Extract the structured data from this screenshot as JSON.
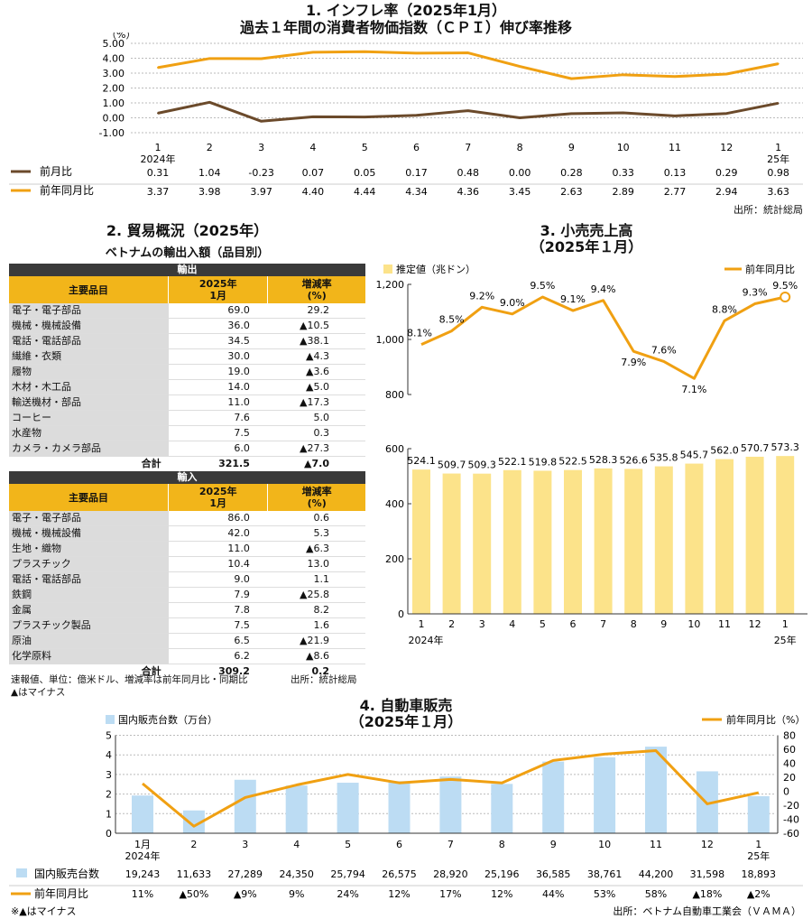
{
  "cpi": {
    "title1": "1. インフレ率（2025年1月）",
    "title2": "過去１年間の消費者物価指数（ＣＰＩ）伸び率推移",
    "unit": "（%）",
    "source": "出所：統計総局",
    "chart_data": {
      "type": "line",
      "categories": [
        "1",
        "2",
        "3",
        "4",
        "5",
        "6",
        "7",
        "8",
        "9",
        "10",
        "11",
        "12",
        "1"
      ],
      "year_labels": {
        "first": "2024年",
        "last": "25年"
      },
      "ylim": [
        -1.0,
        5.0
      ],
      "yticks": [
        "5.00",
        "4.00",
        "3.00",
        "2.00",
        "1.00",
        "0.00",
        "-1.00"
      ],
      "series": [
        {
          "name": "前月比",
          "color": "#6b4a2b",
          "values": [
            0.31,
            1.04,
            -0.23,
            0.07,
            0.05,
            0.17,
            0.48,
            0.0,
            0.28,
            0.33,
            0.13,
            0.29,
            0.98
          ],
          "labels": [
            "0.31",
            "1.04",
            "-0.23",
            "0.07",
            "0.05",
            "0.17",
            "0.48",
            "0.00",
            "0.28",
            "0.33",
            "0.13",
            "0.29",
            "0.98"
          ]
        },
        {
          "name": "前年同月比",
          "color": "#f0a012",
          "values": [
            3.37,
            3.98,
            3.97,
            4.4,
            4.44,
            4.34,
            4.36,
            3.45,
            2.63,
            2.89,
            2.77,
            2.94,
            3.63
          ],
          "labels": [
            "3.37",
            "3.98",
            "3.97",
            "4.40",
            "4.44",
            "4.34",
            "4.36",
            "3.45",
            "2.63",
            "2.89",
            "2.77",
            "2.94",
            "3.63"
          ]
        }
      ]
    }
  },
  "trade": {
    "title": "2. 貿易概況（2025年）",
    "subtitle": "ベトナムの輸出入額（品目別）",
    "col_item": "主要品目",
    "col_value": "2025年\n1月",
    "col_rate": "増減率\n(%)",
    "total_label": "合計",
    "note1": "速報値、単位：億米ドル、増減率は前年同月比・同期比",
    "note2": "▲はマイナス",
    "source": "出所：統計総局",
    "export": {
      "label": "輸出",
      "rows": [
        [
          "電子・電子部品",
          "69.0",
          "29.2"
        ],
        [
          "機械・機械設備",
          "36.0",
          "▲10.5"
        ],
        [
          "電話・電話部品",
          "34.5",
          "▲38.1"
        ],
        [
          "繊維・衣類",
          "30.0",
          "▲4.3"
        ],
        [
          "履物",
          "19.0",
          "▲3.6"
        ],
        [
          "木材・木工品",
          "14.0",
          "▲5.0"
        ],
        [
          "輸送機材・部品",
          "11.0",
          "▲17.3"
        ],
        [
          "コーヒー",
          "7.6",
          "5.0"
        ],
        [
          "水産物",
          "7.5",
          "0.3"
        ],
        [
          "カメラ・カメラ部品",
          "6.0",
          "▲27.3"
        ]
      ],
      "total": [
        "321.5",
        "▲7.0"
      ]
    },
    "import": {
      "label": "輸入",
      "rows": [
        [
          "電子・電子部品",
          "86.0",
          "0.6"
        ],
        [
          "機械・機械設備",
          "42.0",
          "5.3"
        ],
        [
          "生地・織物",
          "11.0",
          "▲6.3"
        ],
        [
          "プラスチック",
          "10.4",
          "13.0"
        ],
        [
          "電話・電話部品",
          "9.0",
          "1.1"
        ],
        [
          "鉄鋼",
          "7.9",
          "▲25.8"
        ],
        [
          "金属",
          "7.8",
          "8.2"
        ],
        [
          "プラスチック製品",
          "7.5",
          "1.6"
        ],
        [
          "原油",
          "6.5",
          "▲21.9"
        ],
        [
          "化学原料",
          "6.2",
          "▲8.6"
        ]
      ],
      "total": [
        "309.2",
        "0.2"
      ]
    }
  },
  "retail": {
    "title1": "3. 小売売上高",
    "title2": "（2025年１月）",
    "chart_data": {
      "type": "bar",
      "categories": [
        "1",
        "2",
        "3",
        "4",
        "5",
        "6",
        "7",
        "8",
        "9",
        "10",
        "11",
        "12",
        "1"
      ],
      "year_labels": {
        "first": "2024年",
        "last": "25年"
      },
      "series": [
        {
          "name": "推定値（兆ドン）",
          "color": "#fce38a",
          "values": [
            524.1,
            509.7,
            509.3,
            522.1,
            519.8,
            522.5,
            528.3,
            526.6,
            535.8,
            545.7,
            562.0,
            570.7,
            573.3
          ],
          "labels": [
            "524.1",
            "509.7",
            "509.3",
            "522.1",
            "519.8",
            "522.5",
            "528.3",
            "526.6",
            "535.8",
            "545.7",
            "562.0",
            "570.7",
            "573.3"
          ]
        },
        {
          "name": "前年同月比",
          "color": "#f0a012",
          "values": [
            8.1,
            8.5,
            9.2,
            9.0,
            9.5,
            9.1,
            9.4,
            7.9,
            7.6,
            7.1,
            8.8,
            9.3,
            9.5
          ],
          "labels": [
            "8.1%",
            "8.5%",
            "9.2%",
            "9.0%",
            "9.5%",
            "9.1%",
            "9.4%",
            "7.9%",
            "7.6%",
            "7.1%",
            "8.8%",
            "9.3%",
            "9.5%"
          ]
        }
      ],
      "upper_ticks": [
        "1,200",
        "1,000",
        "800"
      ],
      "lower_ticks": [
        "600",
        "400",
        "200",
        "0"
      ],
      "lower_ylim": [
        0,
        600
      ]
    }
  },
  "auto": {
    "title1": "4. 自動車販売",
    "title2": "（2025年１月）",
    "source": "出所：ベトナム自動車工業会（ＶＡＭＡ）",
    "note": "※▲はマイナス",
    "chart_data": {
      "type": "bar",
      "categories": [
        "1月",
        "2",
        "3",
        "4",
        "5",
        "6",
        "7",
        "8",
        "9",
        "10",
        "11",
        "12",
        "1"
      ],
      "year_labels": {
        "first": "2024年",
        "last": "25年"
      },
      "left_ylim": [
        0,
        5
      ],
      "right_ylim": [
        -60,
        80
      ],
      "left_ticks": [
        "5",
        "4",
        "3",
        "2",
        "1",
        "0"
      ],
      "right_ticks": [
        "80",
        "60",
        "40",
        "20",
        "0",
        "-20",
        "-40",
        "-60"
      ],
      "series": [
        {
          "name": "国内販売台数",
          "legend": "国内販売台数（万台）",
          "color": "#bcdcf3",
          "values": [
            19243,
            11633,
            27289,
            24350,
            25794,
            26575,
            28920,
            25196,
            36585,
            38761,
            44200,
            31598,
            18893
          ],
          "labels": [
            "19,243",
            "11,633",
            "27,289",
            "24,350",
            "25,794",
            "26,575",
            "28,920",
            "25,196",
            "36,585",
            "38,761",
            "44,200",
            "31,598",
            "18,893"
          ]
        },
        {
          "name": "前年同月比",
          "legend": "前年同月比（%）",
          "color": "#f0a012",
          "values": [
            11,
            -50,
            -9,
            9,
            24,
            12,
            17,
            12,
            44,
            53,
            58,
            -18,
            -2
          ],
          "labels": [
            "11%",
            "▲50%",
            "▲9%",
            "9%",
            "24%",
            "12%",
            "17%",
            "12%",
            "44%",
            "53%",
            "58%",
            "▲18%",
            "▲2%"
          ]
        }
      ]
    }
  }
}
